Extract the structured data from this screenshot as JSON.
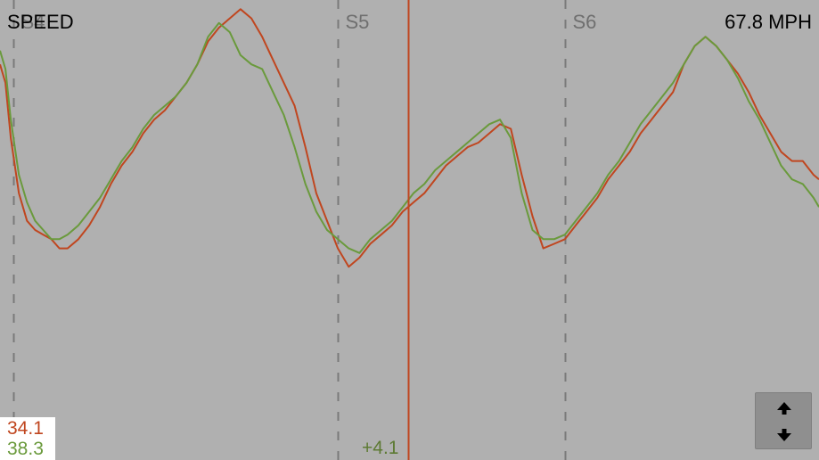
{
  "header": {
    "title": "SPEED",
    "current_speed": "67.8 MPH"
  },
  "sections": [
    {
      "label": "S4",
      "x": 4.0
    },
    {
      "label": "S5",
      "x": 10.0
    },
    {
      "label": "S6",
      "x": 14.2
    }
  ],
  "cursor": {
    "x": 11.3,
    "delta_label": "+4.1",
    "color": "#c0461f"
  },
  "legend": {
    "values": [
      {
        "text": "34.1",
        "color": "#c0461f"
      },
      {
        "text": "38.3",
        "color": "#6a9a3c"
      }
    ]
  },
  "controls": {
    "scroll_button_icon": "up-down-arrows-icon"
  },
  "colors": {
    "background": "#b0b0b0",
    "red_series": "#c0461f",
    "green_series": "#6a9a3c",
    "divider": "#7a7a7a"
  },
  "chart_data": {
    "type": "line",
    "x_range": [
      3.75,
      18.9
    ],
    "ylim": [
      0,
      100
    ],
    "series": [
      {
        "color": "#c0461f",
        "x": [
          3.75,
          3.85,
          3.95,
          4.1,
          4.25,
          4.4,
          4.55,
          4.7,
          4.85,
          5.0,
          5.2,
          5.4,
          5.6,
          5.8,
          6.0,
          6.2,
          6.4,
          6.6,
          6.8,
          7.0,
          7.2,
          7.4,
          7.6,
          7.8,
          8.0,
          8.2,
          8.4,
          8.6,
          8.8,
          9.0,
          9.2,
          9.4,
          9.6,
          9.8,
          10.0,
          10.2,
          10.4,
          10.6,
          10.8,
          11.0,
          11.2,
          11.4,
          11.6,
          11.8,
          12.0,
          12.2,
          12.4,
          12.6,
          12.8,
          13.0,
          13.2,
          13.4,
          13.6,
          13.8,
          14.0,
          14.2,
          14.4,
          14.6,
          14.8,
          15.0,
          15.2,
          15.4,
          15.6,
          15.8,
          16.0,
          16.2,
          16.4,
          16.6,
          16.8,
          17.0,
          17.2,
          17.4,
          17.6,
          17.8,
          18.0,
          18.2,
          18.4,
          18.6,
          18.8,
          18.9
        ],
        "values": [
          86,
          82,
          70,
          58,
          52,
          50,
          49,
          48,
          46,
          46,
          48,
          51,
          55,
          60,
          64,
          67,
          71,
          74,
          76,
          79,
          82,
          86,
          91,
          94,
          96,
          98,
          96,
          92,
          87,
          82,
          77,
          68,
          58,
          52,
          46,
          42,
          44,
          47,
          49,
          51,
          54,
          56,
          58,
          61,
          64,
          66,
          68,
          69,
          71,
          73,
          72,
          62,
          53,
          46,
          47,
          48,
          51,
          54,
          57,
          61,
          64,
          67,
          71,
          74,
          77,
          80,
          86,
          90,
          92,
          90,
          87,
          84,
          80,
          75,
          71,
          67,
          65,
          65,
          62,
          61
        ]
      },
      {
        "color": "#6a9a3c",
        "x": [
          3.75,
          3.85,
          3.95,
          4.1,
          4.25,
          4.4,
          4.55,
          4.7,
          4.85,
          5.0,
          5.2,
          5.4,
          5.6,
          5.8,
          6.0,
          6.2,
          6.4,
          6.6,
          6.8,
          7.0,
          7.2,
          7.4,
          7.6,
          7.8,
          8.0,
          8.2,
          8.4,
          8.6,
          8.8,
          9.0,
          9.2,
          9.4,
          9.6,
          9.8,
          10.0,
          10.2,
          10.4,
          10.6,
          10.8,
          11.0,
          11.2,
          11.4,
          11.6,
          11.8,
          12.0,
          12.2,
          12.4,
          12.6,
          12.8,
          13.0,
          13.2,
          13.4,
          13.6,
          13.8,
          14.0,
          14.2,
          14.4,
          14.6,
          14.8,
          15.0,
          15.2,
          15.4,
          15.6,
          15.8,
          16.0,
          16.2,
          16.4,
          16.6,
          16.8,
          17.0,
          17.2,
          17.4,
          17.6,
          17.8,
          18.0,
          18.2,
          18.4,
          18.6,
          18.8,
          18.9
        ],
        "values": [
          89,
          85,
          74,
          62,
          56,
          52,
          50,
          48,
          48,
          49,
          51,
          54,
          57,
          61,
          65,
          68,
          72,
          75,
          77,
          79,
          82,
          86,
          92,
          95,
          93,
          88,
          86,
          85,
          80,
          75,
          68,
          60,
          54,
          50,
          48,
          46,
          45,
          48,
          50,
          52,
          55,
          58,
          60,
          63,
          65,
          67,
          69,
          71,
          73,
          74,
          70,
          58,
          50,
          48,
          48,
          49,
          52,
          55,
          58,
          62,
          65,
          69,
          73,
          76,
          79,
          82,
          86,
          90,
          92,
          90,
          87,
          83,
          78,
          74,
          69,
          64,
          61,
          60,
          57,
          55
        ]
      }
    ]
  }
}
